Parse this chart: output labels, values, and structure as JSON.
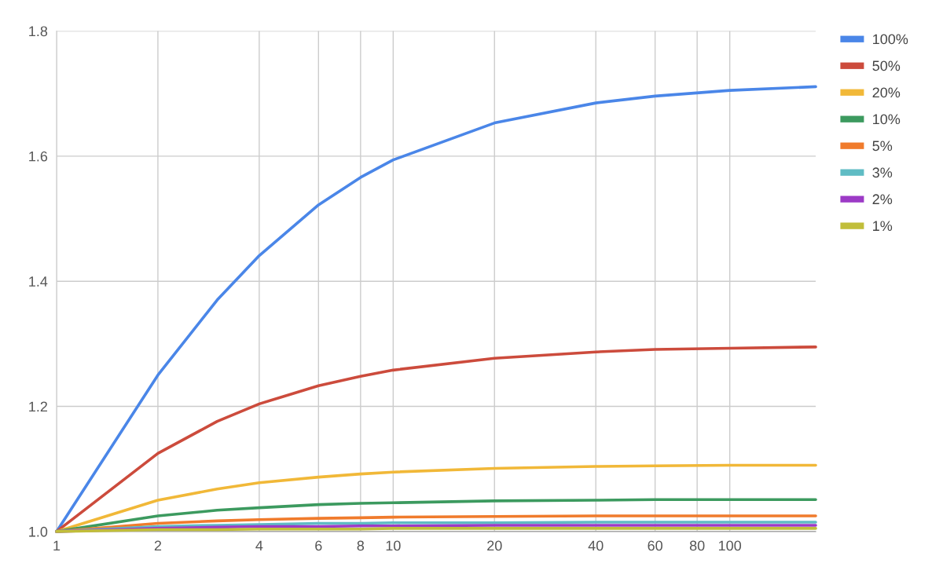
{
  "chart_data": {
    "type": "line",
    "log": "x",
    "x": [
      1,
      2,
      3,
      4,
      6,
      8,
      10,
      20,
      40,
      60,
      100,
      180
    ],
    "xlim": [
      1,
      180
    ],
    "xticks": [
      1,
      2,
      4,
      6,
      8,
      10,
      20,
      40,
      60,
      80,
      100
    ],
    "ylim": [
      1.0,
      1.8
    ],
    "yticks": [
      {
        "value": 1.0,
        "label": "1.0"
      },
      {
        "value": 1.2,
        "label": "1.2"
      },
      {
        "value": 1.4,
        "label": "1.4"
      },
      {
        "value": 1.6,
        "label": "1.6"
      },
      {
        "value": 1.8,
        "label": "1.8"
      }
    ],
    "grid": true,
    "legend": "top right",
    "marker": "none",
    "line_style": "solid",
    "series": [
      {
        "name": "100%",
        "color": "#4a86e8",
        "values": [
          1.0,
          1.25,
          1.37,
          1.441,
          1.522,
          1.566,
          1.594,
          1.653,
          1.685,
          1.696,
          1.705,
          1.711
        ]
      },
      {
        "name": "50%",
        "color": "#cc4b3c",
        "values": [
          1.0,
          1.125,
          1.176,
          1.204,
          1.233,
          1.248,
          1.258,
          1.277,
          1.287,
          1.291,
          1.293,
          1.295
        ]
      },
      {
        "name": "20%",
        "color": "#f1b838",
        "values": [
          1.0,
          1.05,
          1.068,
          1.078,
          1.087,
          1.092,
          1.095,
          1.101,
          1.104,
          1.105,
          1.106,
          1.106
        ]
      },
      {
        "name": "10%",
        "color": "#3c9a5f",
        "values": [
          1.0,
          1.025,
          1.034,
          1.038,
          1.043,
          1.045,
          1.046,
          1.049,
          1.05,
          1.051,
          1.051,
          1.051
        ]
      },
      {
        "name": "5%",
        "color": "#f07b2c",
        "values": [
          1.0,
          1.013,
          1.017,
          1.019,
          1.021,
          1.022,
          1.023,
          1.024,
          1.025,
          1.025,
          1.025,
          1.025
        ]
      },
      {
        "name": "3%",
        "color": "#5fbcc4",
        "values": [
          1.0,
          1.008,
          1.01,
          1.011,
          1.013,
          1.013,
          1.014,
          1.014,
          1.015,
          1.015,
          1.015,
          1.015
        ]
      },
      {
        "name": "2%",
        "color": "#9c3ac6",
        "values": [
          1.0,
          1.005,
          1.007,
          1.008,
          1.008,
          1.009,
          1.009,
          1.01,
          1.01,
          1.01,
          1.01,
          1.01
        ]
      },
      {
        "name": "1%",
        "color": "#c1be3a",
        "values": [
          1.0,
          1.003,
          1.003,
          1.004,
          1.004,
          1.004,
          1.005,
          1.005,
          1.005,
          1.005,
          1.005,
          1.005
        ]
      }
    ]
  }
}
